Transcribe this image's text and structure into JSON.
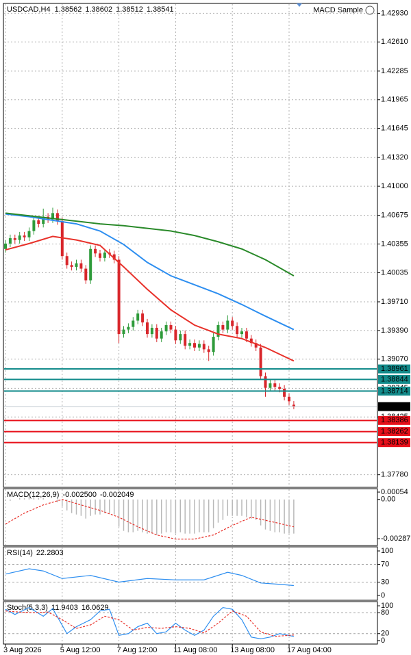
{
  "chart_data": [
    {
      "type": "candlestick",
      "title": "USDCAD,H4",
      "indicator": "MACD Sample",
      "categories": [
        "3 Aug 2026",
        null,
        null,
        null,
        null,
        null,
        null,
        null,
        null,
        null,
        null,
        null,
        "5 Aug 12:00",
        null,
        null,
        null,
        null,
        null,
        null,
        null,
        null,
        null,
        null,
        null,
        "7 Aug 12:00",
        null,
        null,
        null,
        null,
        null,
        null,
        null,
        null,
        null,
        null,
        null,
        "11 Aug 08:00",
        null,
        null,
        null,
        null,
        null,
        null,
        null,
        null,
        null,
        null,
        null,
        "13 Aug 08:00",
        null,
        null,
        null,
        null,
        null,
        null,
        null,
        null,
        null,
        null,
        null,
        "17 Aug 04:00",
        null
      ],
      "open": [
        1.403,
        1.4036,
        1.4042,
        1.404,
        1.4045,
        1.4043,
        1.405,
        1.4062,
        1.4058,
        1.4066,
        1.4063,
        1.407,
        1.4061,
        1.4022,
        1.4012,
        1.401,
        1.4014,
        1.4008,
        1.3995,
        1.403,
        1.4025,
        1.402,
        1.4026,
        1.4024,
        1.4018,
        1.3935,
        1.394,
        1.3943,
        1.395,
        1.3958,
        1.3948,
        1.3935,
        1.3942,
        1.393,
        1.3938,
        1.3945,
        1.394,
        1.3928,
        1.3935,
        1.3922,
        1.3925,
        1.392,
        1.3924,
        1.3918,
        1.3915,
        1.3932,
        1.3945,
        1.394,
        1.395,
        1.3944,
        1.3935,
        1.3938,
        1.393,
        1.3925,
        1.392,
        1.3888,
        1.3875,
        1.388,
        1.3876,
        1.3874,
        1.3865,
        1.38562
      ],
      "high": [
        1.404,
        1.4046,
        1.4046,
        1.4049,
        1.4049,
        1.4054,
        1.4066,
        1.4066,
        1.4075,
        1.407,
        1.4076,
        1.4074,
        1.4065,
        1.4026,
        1.4016,
        1.4018,
        1.4018,
        1.4012,
        1.4034,
        1.4034,
        1.4029,
        1.403,
        1.403,
        1.4028,
        1.4022,
        1.3944,
        1.3947,
        1.3954,
        1.3962,
        1.3962,
        1.3952,
        1.3946,
        1.3946,
        1.3942,
        1.3949,
        1.3949,
        1.3944,
        1.3939,
        1.3939,
        1.3929,
        1.3929,
        1.3928,
        1.3928,
        1.3922,
        1.3936,
        1.3949,
        1.3949,
        1.3956,
        1.3954,
        1.3948,
        1.3942,
        1.3942,
        1.3934,
        1.3929,
        1.3924,
        1.3892,
        1.3884,
        1.3884,
        1.388,
        1.3878,
        1.3869,
        1.38602
      ],
      "low": [
        1.4026,
        1.4032,
        1.4036,
        1.4036,
        1.4039,
        1.4039,
        1.4046,
        1.4054,
        1.4054,
        1.4059,
        1.4059,
        1.4057,
        1.4018,
        1.4008,
        1.4006,
        1.4006,
        1.4004,
        1.3991,
        1.3991,
        1.4021,
        1.4016,
        1.4016,
        1.402,
        1.4014,
        1.3925,
        1.3931,
        1.3936,
        1.3939,
        1.3946,
        1.3944,
        1.3931,
        1.3931,
        1.3926,
        1.3926,
        1.3934,
        1.3936,
        1.3924,
        1.3924,
        1.3918,
        1.3918,
        1.3916,
        1.3916,
        1.3914,
        1.3905,
        1.3911,
        1.3928,
        1.3936,
        1.3936,
        1.394,
        1.3931,
        1.3931,
        1.3926,
        1.3921,
        1.3916,
        1.3884,
        1.3865,
        1.3871,
        1.3872,
        1.387,
        1.3861,
        1.3856,
        1.38512
      ],
      "close": [
        1.4036,
        1.4042,
        1.404,
        1.4045,
        1.4043,
        1.405,
        1.4062,
        1.4058,
        1.4066,
        1.4063,
        1.407,
        1.4061,
        1.4022,
        1.4012,
        1.401,
        1.4014,
        1.4008,
        1.3995,
        1.403,
        1.4025,
        1.402,
        1.4026,
        1.4024,
        1.4018,
        1.3935,
        1.394,
        1.3943,
        1.395,
        1.3958,
        1.3948,
        1.3935,
        1.3942,
        1.393,
        1.3938,
        1.3945,
        1.394,
        1.3928,
        1.3935,
        1.3922,
        1.3925,
        1.392,
        1.3924,
        1.3918,
        1.3915,
        1.3932,
        1.3945,
        1.394,
        1.395,
        1.3944,
        1.3935,
        1.3938,
        1.393,
        1.3925,
        1.392,
        1.3888,
        1.3875,
        1.388,
        1.3876,
        1.3874,
        1.3865,
        1.386,
        1.38541
      ],
      "up_color": "#2e9b3a",
      "down_color": "#d8262b",
      "lines": [
        {
          "color": "#e8312a",
          "x": [
            0,
            5,
            10,
            15,
            20,
            25,
            30,
            35,
            40,
            45,
            50,
            55,
            61
          ],
          "values": [
            1.4029,
            1.4036,
            1.4044,
            1.404,
            1.4034,
            1.401,
            1.3985,
            1.3962,
            1.3945,
            1.3935,
            1.393,
            1.392,
            1.3905
          ]
        },
        {
          "color": "#2d8ef0",
          "x": [
            0,
            5,
            10,
            15,
            20,
            25,
            30,
            35,
            40,
            45,
            50,
            55,
            61
          ],
          "values": [
            1.4069,
            1.4066,
            1.4062,
            1.4058,
            1.405,
            1.4035,
            1.4015,
            1.4,
            1.399,
            1.398,
            1.3968,
            1.3955,
            1.394
          ]
        },
        {
          "color": "#2a8a2a",
          "x": [
            0,
            5,
            10,
            15,
            20,
            25,
            30,
            35,
            40,
            45,
            50,
            55,
            61
          ],
          "values": [
            1.407,
            1.4067,
            1.4064,
            1.4061,
            1.4058,
            1.4056,
            1.4053,
            1.405,
            1.4045,
            1.4038,
            1.403,
            1.4018,
            1.4
          ]
        }
      ],
      "hlines": [
        {
          "value": 1.38961,
          "color": "#138b8b"
        },
        {
          "value": 1.38844,
          "color": "#138b8b"
        },
        {
          "value": 1.38714,
          "color": "#138b8b"
        },
        {
          "value": 1.38386,
          "color": "#e8101a"
        },
        {
          "value": 1.38262,
          "color": "#e8101a"
        },
        {
          "value": 1.38139,
          "color": "#e8101a"
        }
      ],
      "price_color": "#000000",
      "ylim": [
        1.3764,
        1.4304
      ],
      "yticks": [
        {
          "value": 1.4293,
          "label": "1.42930"
        },
        {
          "value": 1.4261,
          "label": "1.42610"
        },
        1.42285,
        1.41965,
        1.41645,
        {
          "value": 1.4132,
          "label": "1.41320"
        },
        {
          "value": 1.41,
          "label": "1.41000"
        },
        1.40675,
        1.40355,
        1.40035,
        {
          "value": 1.3971,
          "label": "1.39710"
        },
        {
          "value": 1.3939,
          "label": "1.39390"
        },
        {
          "value": 1.3907,
          "label": "1.39070"
        },
        1.38745,
        1.38425,
        {
          "value": 1.3778,
          "label": "1.37780"
        }
      ],
      "grid": true
    },
    {
      "type": "bar",
      "label": "MACD(12,26,9)",
      "readout": [
        "-0.002500",
        "-0.002049"
      ],
      "values": [
        -0.0001,
        -0.0001,
        0.0,
        0.0001,
        0.0001,
        0.0002,
        0.0002,
        0.0001,
        0.0001,
        0.0,
        0.0,
        -0.0002,
        -0.0005,
        -0.0008,
        -0.001,
        -0.0011,
        -0.0012,
        -0.0014,
        -0.0012,
        -0.0011,
        -0.0011,
        -0.001,
        -0.001,
        -0.0011,
        -0.002,
        -0.0023,
        -0.0024,
        -0.0024,
        -0.0023,
        -0.0024,
        -0.0025,
        -0.0025,
        -0.0026,
        -0.0025,
        -0.0024,
        -0.0024,
        -0.0025,
        -0.0024,
        -0.0025,
        -0.0025,
        -0.0025,
        -0.0024,
        -0.0024,
        -0.0024,
        -0.0021,
        -0.0017,
        -0.0015,
        -0.0012,
        -0.0012,
        -0.0012,
        -0.0012,
        -0.0013,
        -0.0014,
        -0.0015,
        -0.0019,
        -0.0022,
        -0.0023,
        -0.0024,
        -0.0024,
        -0.0025,
        -0.0025,
        -0.0025
      ],
      "color": "#b8b8b8",
      "lines": [
        {
          "color": "#e8312a",
          "dashed": true,
          "x": [
            0,
            4,
            8,
            12,
            16,
            20,
            24,
            28,
            32,
            36,
            40,
            44,
            48,
            52,
            56,
            61
          ],
          "values": [
            -0.0018,
            -0.001,
            -0.0004,
            0.0,
            -0.0004,
            -0.0008,
            -0.0013,
            -0.002,
            -0.0026,
            -0.0029,
            -0.0029,
            -0.0026,
            -0.0019,
            -0.0013,
            -0.0016,
            -0.002
          ]
        }
      ],
      "ylim": [
        -0.00337,
        0.00079
      ],
      "yticks": [
        0.00054,
        {
          "value": 0,
          "label": "0.00"
        },
        -0.002871
      ]
    },
    {
      "type": "line",
      "label": "RSI(14)",
      "readout": [
        "22.2803"
      ],
      "lines": [
        {
          "color": "#2d8ef0",
          "x": [
            0,
            5,
            8,
            12,
            18,
            24,
            30,
            36,
            42,
            47,
            50,
            54,
            58,
            61
          ],
          "values": [
            48,
            60,
            55,
            38,
            45,
            30,
            38,
            35,
            35,
            52,
            45,
            28,
            25,
            22.28
          ]
        }
      ],
      "levels": [
        70,
        30
      ],
      "ylim": [
        -10.8,
        109.2
      ],
      "yticks": [
        100,
        70,
        30,
        0
      ]
    },
    {
      "type": "line",
      "label": "Stoch(5,3,3)",
      "readout": [
        "11.9403",
        "16.0629"
      ],
      "lines": [
        {
          "color": "#2d8ef0",
          "x": [
            0,
            2,
            5,
            8,
            10,
            13,
            15,
            18,
            20,
            22,
            24,
            26,
            28,
            30,
            32,
            34,
            36,
            38,
            40,
            42,
            44,
            46,
            48,
            50,
            52,
            54,
            56,
            58,
            61
          ],
          "values": [
            90,
            75,
            95,
            70,
            92,
            20,
            40,
            60,
            85,
            90,
            15,
            20,
            40,
            50,
            20,
            25,
            50,
            30,
            15,
            30,
            70,
            95,
            90,
            60,
            10,
            5,
            10,
            20,
            11.94
          ]
        },
        {
          "color": "#e8312a",
          "dashed": true,
          "x": [
            0,
            3,
            6,
            9,
            12,
            15,
            18,
            21,
            24,
            27,
            30,
            33,
            36,
            39,
            42,
            45,
            48,
            51,
            54,
            57,
            61
          ],
          "values": [
            85,
            82,
            80,
            82,
            60,
            35,
            45,
            70,
            60,
            30,
            38,
            35,
            40,
            35,
            22,
            50,
            85,
            70,
            25,
            12,
            16.06
          ]
        }
      ],
      "levels": [
        80,
        20
      ],
      "ylim": [
        -10,
        112
      ],
      "yticks": [
        100,
        80,
        20,
        0
      ]
    }
  ]
}
